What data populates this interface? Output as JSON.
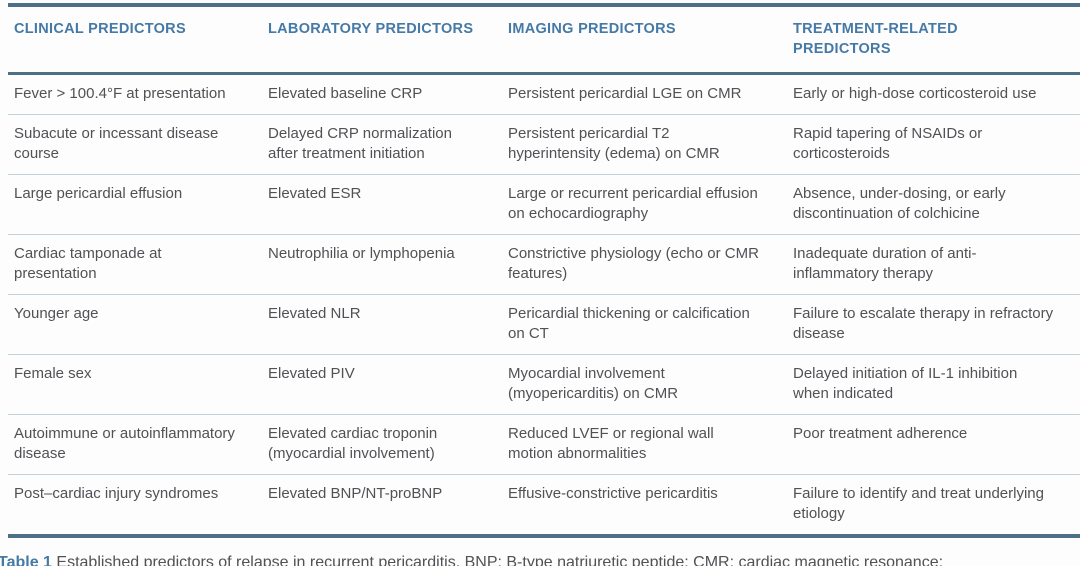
{
  "table": {
    "headers": [
      "CLINICAL PREDICTORS",
      "LABORATORY PREDICTORS",
      "IMAGING PREDICTORS",
      "TREATMENT-RELATED PREDICTORS"
    ],
    "rows": [
      [
        "Fever > 100.4°F at presentation",
        "Elevated baseline CRP",
        "Persistent pericardial LGE on CMR",
        "Early or high-dose corticosteroid use"
      ],
      [
        "Subacute or incessant disease course",
        "Delayed CRP normalization after treatment initiation",
        "Persistent pericardial T2 hyperintensity (edema) on CMR",
        "Rapid tapering of NSAIDs or corticosteroids"
      ],
      [
        "Large pericardial effusion",
        "Elevated ESR",
        "Large or recurrent pericardial effusion on echocardiography",
        "Absence, under-dosing, or early discontinuation of colchicine"
      ],
      [
        "Cardiac tamponade at presentation",
        "Neutrophilia or lymphopenia",
        "Constrictive physiology (echo or CMR features)",
        "Inadequate duration of anti-inflammatory therapy"
      ],
      [
        "Younger age",
        "Elevated NLR",
        "Pericardial thickening or calcification on CT",
        "Failure to escalate therapy in refractory disease"
      ],
      [
        "Female sex",
        "Elevated PIV",
        "Myocardial involvement (myopericarditis) on CMR",
        "Delayed initiation of IL-1 inhibition when indicated"
      ],
      [
        "Autoimmune or autoinflammatory disease",
        "Elevated cardiac troponin (myocardial involvement)",
        "Reduced LVEF or regional wall motion abnormalities",
        "Poor treatment adherence"
      ],
      [
        "Post–cardiac injury syndromes",
        "Elevated BNP/NT-proBNP",
        "Effusive-constrictive pericarditis",
        "Failure to identify and treat underlying etiology"
      ]
    ]
  },
  "caption": {
    "label": "Table 1",
    "text": "Established predictors of relapse in recurrent pericarditis. BNP: B-type natriuretic peptide; CMR: cardiac magnetic resonance;"
  },
  "colors": {
    "header_text": "#4579a6",
    "body_text": "#515156",
    "heavy_rule": "#4d7086",
    "light_rule": "#c0d2dc"
  }
}
